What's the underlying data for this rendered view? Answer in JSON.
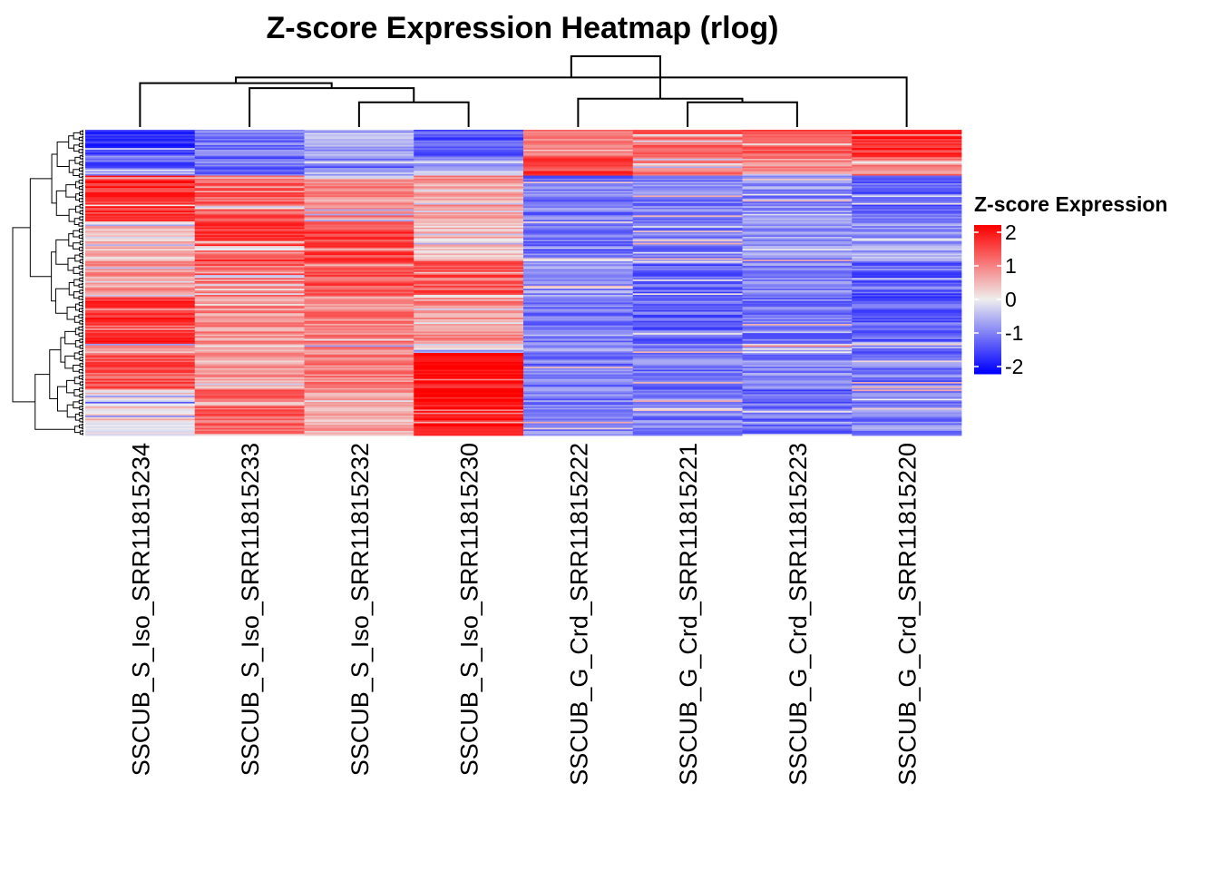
{
  "chart_data": {
    "type": "heatmap",
    "title": "Z-score Expression Heatmap (rlog)",
    "columns": [
      "SSCUB_S_Iso_SRR11815234",
      "SSCUB_S_Iso_SRR11815233",
      "SSCUB_S_Iso_SRR11815232",
      "SSCUB_S_Iso_SRR11815230",
      "SSCUB_G_Crd_SRR11815222",
      "SSCUB_G_Crd_SRR11815221",
      "SSCUB_G_Crd_SRR11815223",
      "SSCUB_G_Crd_SRR11815220"
    ],
    "row_blocks": [
      {
        "fraction": 0.09,
        "means": [
          -1.5,
          -1.0,
          -0.6,
          -1.2,
          1.0,
          1.1,
          1.3,
          1.6
        ]
      },
      {
        "fraction": 0.06,
        "means": [
          -1.2,
          -1.1,
          -1.0,
          -0.5,
          1.4,
          0.9,
          0.8,
          0.9
        ]
      },
      {
        "fraction": 0.15,
        "means": [
          1.6,
          1.2,
          0.8,
          0.7,
          -1.0,
          -0.9,
          -0.8,
          -1.2
        ]
      },
      {
        "fraction": 0.13,
        "means": [
          0.5,
          1.4,
          1.4,
          0.4,
          -1.1,
          -0.9,
          -0.8,
          -0.7
        ]
      },
      {
        "fraction": 0.12,
        "means": [
          0.7,
          1.1,
          1.3,
          1.3,
          -0.8,
          -1.2,
          -0.9,
          -1.3
        ]
      },
      {
        "fraction": 0.15,
        "means": [
          1.7,
          0.8,
          0.9,
          0.8,
          -1.0,
          -1.1,
          -1.0,
          -1.2
        ]
      },
      {
        "fraction": 0.03,
        "means": [
          0.5,
          0.3,
          0.8,
          0.1,
          -0.8,
          -0.9,
          -0.4,
          -1.1
        ]
      },
      {
        "fraction": 0.12,
        "means": [
          1.3,
          0.6,
          1.0,
          1.8,
          -1.0,
          -1.0,
          -0.9,
          -1.0
        ]
      },
      {
        "fraction": 0.15,
        "means": [
          0.2,
          1.2,
          0.6,
          1.9,
          -0.9,
          -0.9,
          -1.1,
          -0.9
        ]
      }
    ],
    "row_count": 200,
    "col_dendrogram": {
      "merges": [
        [
          2,
          3
        ],
        [
          1,
          8
        ],
        [
          0,
          9
        ],
        [
          5,
          6
        ],
        [
          4,
          11
        ],
        [
          10,
          7
        ],
        [
          12,
          13
        ]
      ],
      "heights": [
        0.35,
        0.55,
        0.62,
        0.35,
        0.4,
        0.7,
        1.0
      ]
    },
    "color_scale": {
      "min": -2,
      "max": 2,
      "low": "#0000FF",
      "mid": "#EEEEEE",
      "high": "#FF0000"
    },
    "legend": {
      "title": "Z-score Expression",
      "ticks": [
        2,
        1,
        0,
        -1,
        -2
      ]
    }
  }
}
